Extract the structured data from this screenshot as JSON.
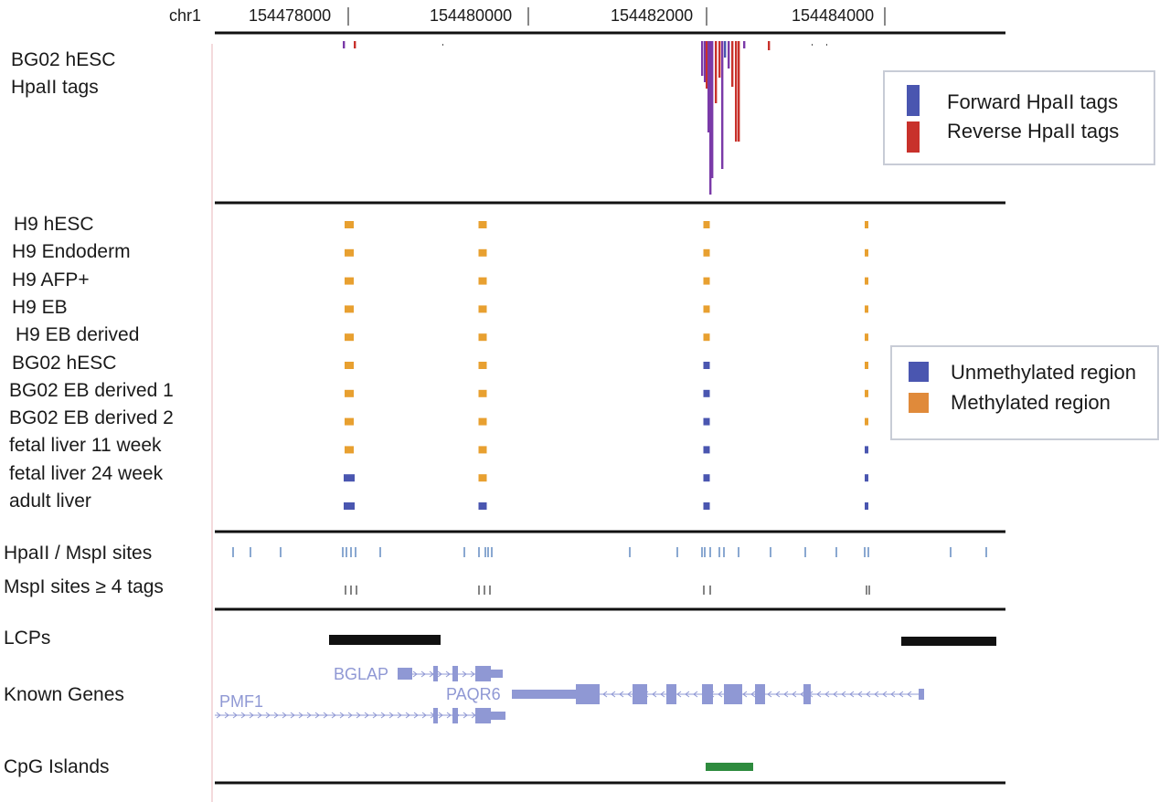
{
  "header": {
    "chrom": "chr1",
    "ticks": [
      "154478000",
      "154480000",
      "154482000",
      "154484000"
    ]
  },
  "tracks": {
    "tags_label_1": "BG02 hESC",
    "tags_label_2": "HpaII tags",
    "samples": [
      "H9 hESC",
      "H9 Endoderm",
      "H9 AFP+",
      "H9 EB",
      "H9 EB derived",
      "BG02 hESC",
      "BG02 EB derived 1",
      "BG02 EB derived 2",
      "fetal liver 11 week",
      "fetal liver 24 week",
      "adult liver"
    ],
    "sites_label": "HpaII / MspI sites",
    "msp_label": "MspI sites ≥ 4 tags",
    "lcp_label": "LCPs",
    "genes_label": "Known Genes",
    "cpg_label": "CpG Islands"
  },
  "genes": {
    "bglap": "BGLAP",
    "pmf1": "PMF1",
    "paqr6": "PAQR6"
  },
  "legend_tags": {
    "forward": "Forward HpaII tags",
    "reverse": "Reverse HpaII tags",
    "forward_color": "#4a56b0",
    "reverse_color": "#c8312b"
  },
  "legend_methyl": {
    "unmethylated": "Unmethylated region",
    "methylated": "Methylated region",
    "unmethylated_color": "#4a56b0",
    "methylated_color": "#e08a3a"
  },
  "methylation_states": [
    [
      "M",
      "M",
      "M",
      "M"
    ],
    [
      "M",
      "M",
      "M",
      "M"
    ],
    [
      "M",
      "M",
      "M",
      "M"
    ],
    [
      "M",
      "M",
      "M",
      "M"
    ],
    [
      "M",
      "M",
      "M",
      "M"
    ],
    [
      "M",
      "M",
      "U",
      "M"
    ],
    [
      "M",
      "M",
      "U",
      "M"
    ],
    [
      "M",
      "M",
      "U",
      "M"
    ],
    [
      "M",
      "M",
      "U",
      "U"
    ],
    [
      "U",
      "M",
      "U",
      "U"
    ],
    [
      "U",
      "U",
      "U",
      "U"
    ]
  ],
  "colors": {
    "methylated_block": "#e8a030",
    "unmethylated_block": "#4a56b0",
    "sites": "#4a7ab8",
    "gene": "#8f98d4",
    "cpg": "#2e8b3e",
    "lcp": "#111111",
    "purple_tag": "#7a3aa8"
  }
}
